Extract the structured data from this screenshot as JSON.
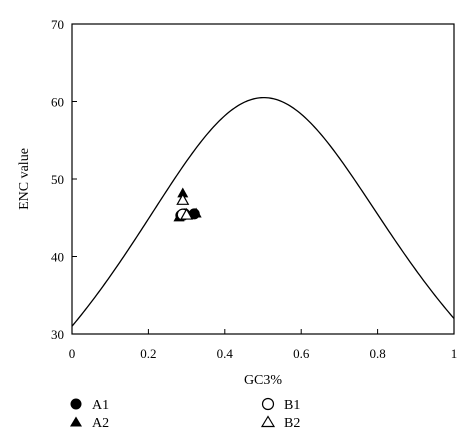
{
  "chart_data": {
    "type": "scatter",
    "title": "",
    "xlabel": "GC3%",
    "ylabel": "ENC value",
    "xlim": [
      0,
      1
    ],
    "ylim": [
      30,
      70
    ],
    "x_ticks": [
      0,
      0.2,
      0.4,
      0.6,
      0.8,
      1
    ],
    "x_tick_labels": [
      "0",
      "0.2",
      "0.4",
      "0.6",
      "0.8",
      "1"
    ],
    "y_ticks": [
      30,
      40,
      50,
      60,
      70
    ],
    "y_tick_labels": [
      "30",
      "40",
      "50",
      "60",
      "70"
    ],
    "grid": false,
    "legend_position": "bottom",
    "expected_curve": {
      "formula": "ENC = 2 + GC3 + 29 / (GC3^2 + (1 - GC3)^2)",
      "x_range": [
        0,
        1
      ]
    },
    "series": [
      {
        "name": "A1",
        "marker": "filled-circle",
        "points": [
          [
            0.285,
            45.3
          ],
          [
            0.295,
            45.5
          ],
          [
            0.32,
            45.5
          ]
        ]
      },
      {
        "name": "A2",
        "marker": "filled-triangle",
        "points": [
          [
            0.29,
            48.2
          ],
          [
            0.28,
            45.1
          ],
          [
            0.325,
            45.6
          ]
        ]
      },
      {
        "name": "B1",
        "marker": "open-circle",
        "points": [
          [
            0.29,
            45.4
          ]
        ]
      },
      {
        "name": "B2",
        "marker": "open-triangle",
        "points": [
          [
            0.29,
            47.3
          ],
          [
            0.3,
            45.4
          ]
        ]
      }
    ]
  }
}
